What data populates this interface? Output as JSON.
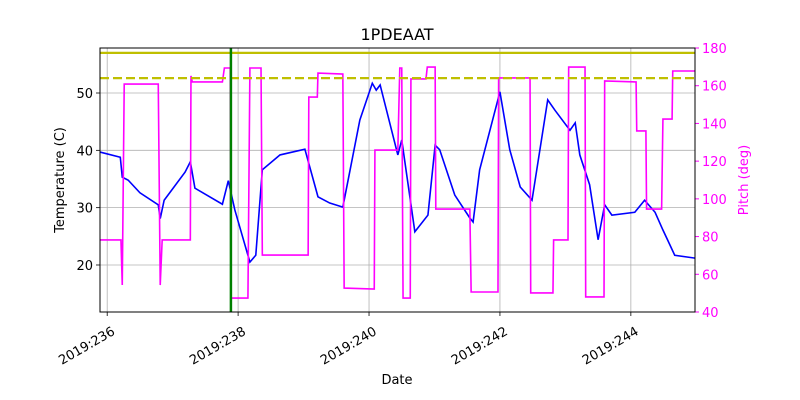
{
  "chart_data": {
    "type": "line",
    "title": "1PDEAAT",
    "x_label": "Date",
    "y_label": "Temperature (C)",
    "y2_label": "Pitch (deg)",
    "xlim": [
      235.89,
      244.98
    ],
    "xticks": [
      {
        "value": 236,
        "label": "2019:236"
      },
      {
        "value": 238,
        "label": "2019:238"
      },
      {
        "value": 240,
        "label": "2019:240"
      },
      {
        "value": 242,
        "label": "2019:242"
      },
      {
        "value": 244,
        "label": "2019:244"
      }
    ],
    "ylim": [
      11.8,
      57.85
    ],
    "yticks": [
      20,
      30,
      40,
      50
    ],
    "y2lim": [
      40,
      180
    ],
    "y2ticks": [
      40,
      60,
      80,
      100,
      120,
      140,
      160,
      180
    ],
    "grid": true,
    "series": [
      {
        "color": "#0000ff",
        "x": [
          235.89,
          236.2,
          236.23,
          236.32,
          236.5,
          236.78,
          236.81,
          236.87,
          237.19,
          237.27,
          237.34,
          237.76,
          237.85,
          237.95,
          238.18,
          238.27,
          238.37,
          238.64,
          239.02,
          239.22,
          239.4,
          239.6,
          239.86,
          240.05,
          240.11,
          240.17,
          240.44,
          240.5,
          240.7,
          240.9,
          241.01,
          241.08,
          241.31,
          241.54,
          241.59,
          241.69,
          242.0,
          242.15,
          242.31,
          242.49,
          242.73,
          242.84,
          243.07,
          243.15,
          243.22,
          243.37,
          243.5,
          243.6,
          243.71,
          244.06,
          244.21,
          244.37,
          244.49,
          244.56,
          244.67,
          244.98
        ],
        "values": [
          39.7,
          38.8,
          35.3,
          34.8,
          32.6,
          30.5,
          28.1,
          31.3,
          36.2,
          38.0,
          33.4,
          30.6,
          34.7,
          29.6,
          20.5,
          21.7,
          36.6,
          39.2,
          40.2,
          31.9,
          30.8,
          30.1,
          45.3,
          51.7,
          50.5,
          51.4,
          39.2,
          41.8,
          25.8,
          28.7,
          40.9,
          40.1,
          32.2,
          28.2,
          27.5,
          36.6,
          50.2,
          40.1,
          33.6,
          31.3,
          48.8,
          47.0,
          43.5,
          44.8,
          39.2,
          34.0,
          24.4,
          30.5,
          28.7,
          29.2,
          31.3,
          29.2,
          26.1,
          24.4,
          21.7,
          21.2
        ]
      },
      {
        "color": "#ff00ff",
        "axis": "y2",
        "x": [
          235.89,
          236.21,
          236.23,
          236.26,
          236.78,
          236.81,
          236.84,
          237.27,
          237.28,
          237.3,
          237.76,
          237.79,
          237.88,
          237.89,
          238.15,
          238.18,
          238.35,
          238.37,
          239.07,
          239.08,
          239.21,
          239.22,
          239.6,
          239.62,
          240.08,
          240.09,
          240.44,
          240.47,
          240.5,
          240.52,
          240.63,
          240.64,
          240.87,
          240.89,
          241.01,
          241.02,
          241.54,
          241.56,
          241.97,
          241.98,
          242.46,
          242.47,
          242.81,
          242.82,
          243.04,
          243.05,
          243.3,
          243.31,
          243.59,
          243.6,
          244.08,
          244.09,
          244.23,
          244.24,
          244.47,
          244.49,
          244.63,
          244.64,
          244.98
        ],
        "values": [
          78.2,
          78.2,
          54.3,
          160.9,
          160.9,
          54.3,
          78.2,
          78.2,
          165.2,
          162.0,
          162.0,
          169.4,
          169.4,
          47.4,
          47.4,
          169.4,
          169.4,
          70.2,
          70.2,
          154.0,
          154.0,
          166.7,
          166.2,
          52.7,
          52.2,
          125.9,
          125.9,
          169.4,
          169.4,
          47.4,
          47.4,
          163.6,
          163.6,
          169.9,
          169.9,
          94.6,
          94.6,
          50.6,
          50.6,
          164.1,
          164.1,
          50.1,
          50.1,
          78.2,
          78.2,
          169.9,
          169.9,
          48.0,
          48.0,
          162.5,
          162.0,
          136.0,
          136.0,
          94.6,
          94.6,
          142.3,
          142.3,
          167.8,
          167.8
        ]
      }
    ],
    "hlines": [
      {
        "value": 57,
        "color": "#bfbf00",
        "style": "solid"
      },
      {
        "value": 52.6,
        "color": "#bfbf00",
        "style": "dashed"
      }
    ],
    "vlines": [
      {
        "value": 237.89,
        "color": "#008000"
      }
    ]
  }
}
